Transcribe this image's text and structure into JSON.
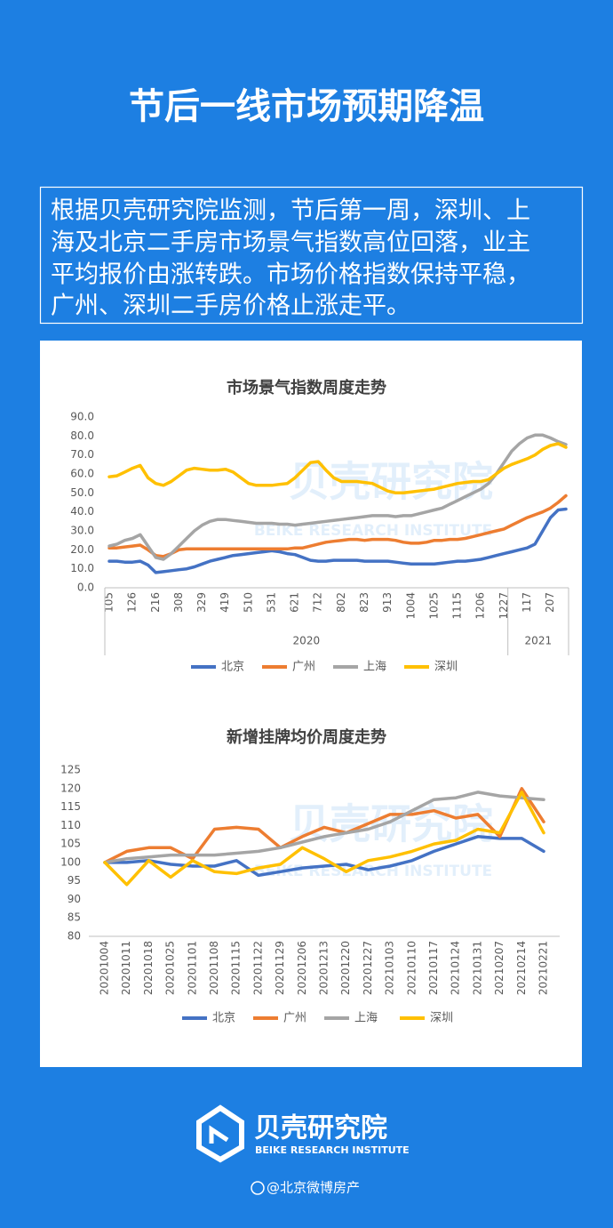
{
  "header": {
    "title": "节后一线市场预期降温"
  },
  "summary": {
    "lines": [
      "根据贝壳研究院监测，节后第一周，深圳、上",
      "海及北京二手房市场景气指数高位回落，业主",
      "平均报价由涨转跌。市场价格指数保持平稳，",
      "广州、深圳二手房价格止涨走平。"
    ]
  },
  "chart_data": [
    {
      "type": "line",
      "title": "市场景气指数周度走势",
      "categories": [
        "105",
        null,
        null,
        "126",
        null,
        null,
        "216",
        null,
        null,
        "308",
        null,
        null,
        "329",
        null,
        null,
        "419",
        null,
        null,
        "510",
        null,
        null,
        "531",
        null,
        null,
        "621",
        null,
        null,
        "712",
        null,
        null,
        "802",
        null,
        null,
        "823",
        null,
        null,
        "913",
        null,
        null,
        "1004",
        null,
        null,
        "1025",
        null,
        null,
        "1115",
        null,
        null,
        "1206",
        null,
        null,
        "1227",
        null,
        null,
        "117",
        null,
        null,
        "207",
        null,
        null
      ],
      "x_groups": [
        {
          "label": "2020",
          "count": 52
        },
        {
          "label": "2021",
          "count": 8
        }
      ],
      "ylim": [
        0,
        90
      ],
      "yticks": [
        {
          "value": 0,
          "label": "0.0"
        },
        {
          "value": 10,
          "label": "10.0"
        },
        {
          "value": 20,
          "label": "20.0"
        },
        {
          "value": 30,
          "label": "30.0"
        },
        {
          "value": 40,
          "label": "40.0"
        },
        {
          "value": 50,
          "label": "50.0"
        },
        {
          "value": 60,
          "label": "60.0"
        },
        {
          "value": 70,
          "label": "70.0"
        },
        {
          "value": 80,
          "label": "80.0"
        },
        {
          "value": 90,
          "label": "90.0"
        }
      ],
      "grid": false,
      "legend": "bottom",
      "series": [
        {
          "name": "北京",
          "color": "#4472c4",
          "values": [
            14,
            14,
            13.5,
            13.5,
            14,
            12,
            8,
            8.5,
            9,
            9.5,
            10,
            11,
            12.5,
            14,
            15,
            16,
            17,
            17.5,
            18,
            18.5,
            19,
            19.5,
            19,
            18,
            17.5,
            16,
            14.5,
            14,
            14,
            14.5,
            14.5,
            14.5,
            14.5,
            14,
            14,
            14,
            14,
            13.5,
            13,
            12.5,
            12.5,
            12.5,
            12.5,
            13,
            13.5,
            14,
            14,
            14.5,
            15,
            16,
            17,
            18,
            19,
            20,
            21,
            23,
            30,
            37,
            41,
            41.5
          ]
        },
        {
          "name": "广州",
          "color": "#ed7d31",
          "values": [
            21,
            21,
            21.5,
            22,
            22.5,
            20,
            17,
            16.5,
            18,
            20,
            20.5,
            20.5,
            20.5,
            20.5,
            20.5,
            20.5,
            20.5,
            20.5,
            20.5,
            20.5,
            20.5,
            20.5,
            20.5,
            20.5,
            21,
            21,
            22,
            23,
            24,
            24.5,
            25,
            25.5,
            25.5,
            25,
            25.5,
            25.5,
            25.5,
            25,
            24,
            23.5,
            23.5,
            24,
            25,
            25,
            25.5,
            25.5,
            26,
            27,
            28,
            29,
            30,
            31,
            33,
            35,
            37,
            38.5,
            40,
            42,
            45,
            48.5
          ]
        },
        {
          "name": "上海",
          "color": "#a5a5a5",
          "values": [
            22,
            23,
            25,
            26,
            28,
            22,
            16,
            15,
            18,
            22,
            26,
            30,
            33,
            35,
            36,
            36,
            35.5,
            35,
            34.5,
            34,
            34,
            34,
            33.5,
            33.5,
            33,
            33.5,
            34,
            34.5,
            35,
            35.5,
            36,
            36.5,
            37,
            37.5,
            38,
            38,
            38,
            37.5,
            38,
            38,
            39,
            40,
            41,
            42,
            44,
            46,
            48,
            50,
            52,
            55,
            60,
            66,
            72,
            76,
            79,
            80.5,
            80.5,
            79,
            77,
            75.5
          ]
        },
        {
          "name": "深圳",
          "color": "#ffc000",
          "values": [
            58.5,
            59,
            61,
            63,
            64.5,
            58,
            55,
            54,
            56,
            59,
            62,
            63,
            62.5,
            62,
            62,
            62.5,
            61,
            58,
            55,
            54,
            54,
            54,
            54.5,
            55,
            58,
            62,
            66,
            66.5,
            62,
            58,
            56,
            56,
            56,
            55.5,
            55,
            53,
            51,
            50,
            50,
            50.5,
            51,
            51.5,
            52,
            53,
            54,
            55,
            55.5,
            56,
            56,
            57,
            60,
            63,
            65,
            66.5,
            68,
            70,
            73,
            75,
            76,
            74
          ]
        }
      ]
    },
    {
      "type": "line",
      "title": "新增挂牌均价周度走势",
      "categories": [
        "20201004",
        "20201011",
        "20201018",
        "20201025",
        "20201101",
        "20201108",
        "20201115",
        "20201122",
        "20201129",
        "20201206",
        "20201213",
        "20201220",
        "20201227",
        "20210103",
        "20210110",
        "20210117",
        "20210124",
        "20210131",
        "20210207",
        "20210214",
        "20210221"
      ],
      "ylim": [
        80,
        125
      ],
      "yticks": [
        80,
        85,
        90,
        95,
        100,
        105,
        110,
        115,
        120,
        125
      ],
      "grid": false,
      "legend": "bottom",
      "series": [
        {
          "name": "北京",
          "color": "#4472c4",
          "values": [
            100,
            100,
            100.5,
            99.5,
            99,
            99,
            100.5,
            96.5,
            97.5,
            98.5,
            99,
            99.5,
            98,
            99,
            100.5,
            103,
            105,
            107,
            106.5,
            106.5,
            103
          ]
        },
        {
          "name": "广州",
          "color": "#ed7d31",
          "values": [
            100,
            103,
            104,
            104,
            101,
            109,
            109.5,
            109,
            104,
            107,
            109.5,
            108,
            110.5,
            113,
            113,
            114,
            112,
            113,
            107,
            120,
            111
          ]
        },
        {
          "name": "上海",
          "color": "#a5a5a5",
          "values": [
            100,
            101,
            101.5,
            102,
            102,
            102,
            102.5,
            103,
            104,
            105.5,
            107,
            108,
            109,
            111,
            114,
            117,
            117.5,
            119,
            118,
            117.5,
            117
          ]
        },
        {
          "name": "深圳",
          "color": "#ffc000",
          "values": [
            100,
            94,
            100.5,
            96,
            100.5,
            97.5,
            97,
            98.5,
            99.5,
            104,
            101,
            97.5,
            100.5,
            101.5,
            103,
            105,
            106,
            109,
            108,
            119,
            108
          ]
        }
      ]
    }
  ],
  "watermark": {
    "name": "贝壳研究院",
    "subtitle": "BEIKE RESEARCH INSTITUTE"
  },
  "footer": {
    "brand": "贝壳研究院",
    "brand_en": "BEIKE RESEARCH INSTITUTE",
    "handle": "@北京微博房产"
  }
}
